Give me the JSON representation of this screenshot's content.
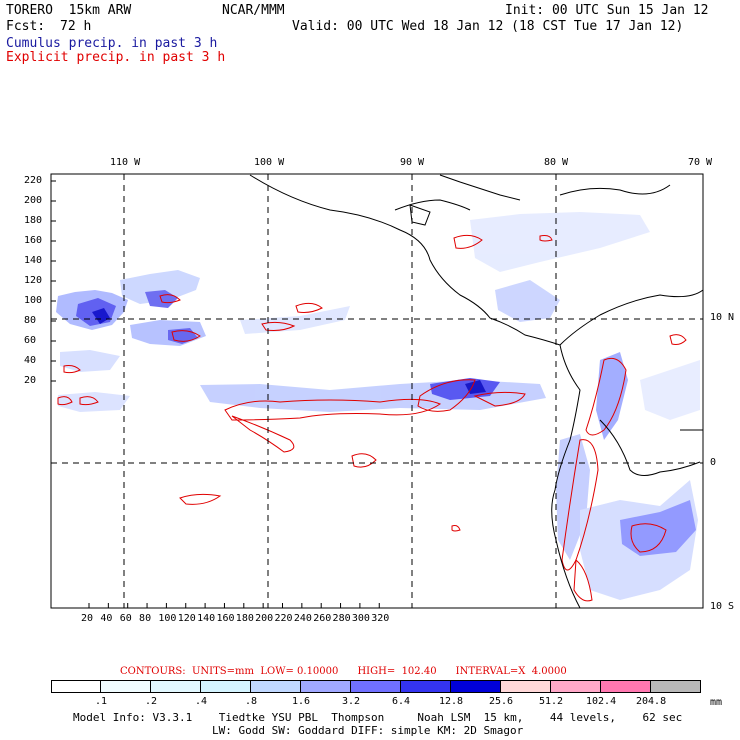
{
  "header": {
    "model": "TORERO  15km ARW",
    "org": "NCAR/MMM",
    "init": "Init: 00 UTC Sun 15 Jan 12",
    "fcst_label": "Fcst:",
    "fcst_value": "72 h",
    "valid": "Valid: 00 UTC Wed 18 Jan 12 (18 CST Tue 17 Jan 12)",
    "legend_blue": "Cumulus precip. in past 3 h",
    "legend_red": "Explicit precip. in past 3 h"
  },
  "map": {
    "top_lon_labels": [
      "110 W",
      "100 W",
      "90 W",
      "80 W",
      "70 W"
    ],
    "right_lat_labels": [
      "10 N",
      "0",
      "10 S"
    ],
    "left_y_ticks": [
      "220",
      "200",
      "180",
      "160",
      "140",
      "120",
      "100",
      "80",
      "60",
      "40",
      "20"
    ],
    "bottom_x_ticks": [
      "20",
      "40",
      "60",
      "80",
      "100",
      "120",
      "140",
      "160",
      "180",
      "200",
      "220",
      "240",
      "260",
      "280",
      "300",
      "320"
    ]
  },
  "contours": {
    "text": "CONTOURS:  UNITS=mm  LOW= 0.10000      HIGH=  102.40      INTERVAL=X  4.0000",
    "color": "#e00000"
  },
  "colorbar": {
    "colors": [
      "#ffffff",
      "#f0fcff",
      "#e2f8ff",
      "#d4f4ff",
      "#c0d8ff",
      "#a0a8ff",
      "#7070ff",
      "#3434f0",
      "#0000d8",
      "#ffd8d8",
      "#ffa8c8",
      "#ff78b0",
      "#b8b8b8",
      "#808080",
      "#404040",
      "#d8a8ff"
    ],
    "labels": [
      ".1",
      ".2",
      ".4",
      ".8",
      "1.6",
      "3.2",
      "6.4",
      "12.8",
      "25.6",
      "51.2",
      "102.4",
      "204.8"
    ],
    "unit": "mm"
  },
  "footer": {
    "line1": "Model Info: V3.3.1    Tiedtke YSU PBL  Thompson     Noah LSM  15 km,    44 levels,    62 sec",
    "line2": "LW: Godd SW: Goddard DIFF: simple KM: 2D Smagor"
  }
}
